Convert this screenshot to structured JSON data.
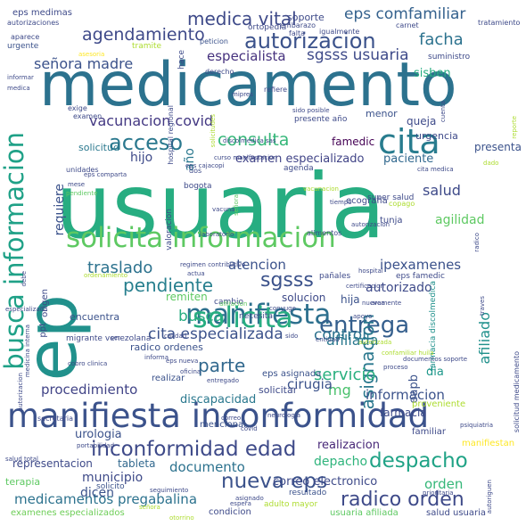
{
  "word_cloud": {
    "words": [
      {
        "text": "usuaria",
        "color": "#27ad81"
      },
      {
        "text": "medicamento",
        "color": "#2c728e"
      },
      {
        "text": "ep",
        "color": "#21918c"
      },
      {
        "text": "manifiesta inconformidad",
        "color": "#3b528b"
      },
      {
        "text": "solicita informacion",
        "color": "#5ec962"
      },
      {
        "text": "busca informacion",
        "color": "#1fa187"
      },
      {
        "text": "cita",
        "color": "#287c8e"
      },
      {
        "text": "manifiesta",
        "color": "#2d708e"
      },
      {
        "text": "solicita",
        "color": "#27ad81"
      },
      {
        "text": "despacho",
        "color": "#20a386"
      },
      {
        "text": "inconformidad edad",
        "color": "#3e4a89"
      },
      {
        "text": "nueva eps",
        "color": "#3b528b"
      },
      {
        "text": "autorizacion",
        "color": "#3b528b"
      },
      {
        "text": "acceso",
        "color": "#2a788e"
      },
      {
        "text": "consulta",
        "color": "#35b779"
      },
      {
        "text": "medica vital",
        "color": "#3e4a89"
      },
      {
        "text": "entrega",
        "color": "#355f8d"
      },
      {
        "text": "radico orden",
        "color": "#3e4a89"
      },
      {
        "text": "pendiente",
        "color": "#277f8e"
      },
      {
        "text": "sgsss",
        "color": "#3b528b"
      },
      {
        "text": "asignacion",
        "color": "#2a788e"
      },
      {
        "text": "servicio",
        "color": "#2ab07f"
      },
      {
        "text": "parte",
        "color": "#31688e"
      },
      {
        "text": "eps comfamiliar",
        "color": "#34618d"
      },
      {
        "text": "agendamiento",
        "color": "#3e4989"
      },
      {
        "text": "facha",
        "color": "#2c728e"
      },
      {
        "text": "sgsss usuaria",
        "color": "#3e4a89"
      },
      {
        "text": "especialista",
        "color": "#46327e"
      },
      {
        "text": "señora madre",
        "color": "#3b528b"
      },
      {
        "text": "vacunacion covid",
        "color": "#443983"
      },
      {
        "text": "solicitud",
        "color": "#2a788e"
      },
      {
        "text": "año",
        "color": "#2a788e"
      },
      {
        "text": "requiere",
        "color": "#3b528b"
      },
      {
        "text": "hijo",
        "color": "#3e4a89"
      },
      {
        "text": "examen especializado",
        "color": "#414487"
      },
      {
        "text": "paciente",
        "color": "#31688e"
      },
      {
        "text": "famedic",
        "color": "#440154"
      },
      {
        "text": "salud",
        "color": "#3e4a89"
      },
      {
        "text": "agilidad",
        "color": "#5ec962"
      },
      {
        "text": "traslado",
        "color": "#2c728e"
      },
      {
        "text": "atencion",
        "color": "#3b528b"
      },
      {
        "text": "ipexamenes",
        "color": "#3b528b"
      },
      {
        "text": "control",
        "color": "#2c728e"
      },
      {
        "text": "autorizado",
        "color": "#3e4a89"
      },
      {
        "text": "solucion",
        "color": "#3e4a89"
      },
      {
        "text": "hija",
        "color": "#3b528b"
      },
      {
        "text": "afiliada",
        "color": "#2a788e"
      },
      {
        "text": "cita especializada",
        "color": "#3b528b"
      },
      {
        "text": "busca",
        "color": "#27ad81"
      },
      {
        "text": "remiten",
        "color": "#5ec962"
      },
      {
        "text": "procedimiento",
        "color": "#414487"
      },
      {
        "text": "mg",
        "color": "#4ac16d"
      },
      {
        "text": "informacion",
        "color": "#3b528b"
      },
      {
        "text": "dia",
        "color": "#1f988b"
      },
      {
        "text": "cirugia",
        "color": "#3b528b"
      },
      {
        "text": "eapb",
        "color": "#3b528b"
      },
      {
        "text": "afiliado",
        "color": "#21918c"
      },
      {
        "text": "farmacia",
        "color": "#3e4a89"
      },
      {
        "text": "discapacidad",
        "color": "#2a788e"
      },
      {
        "text": "documento",
        "color": "#2c728e"
      },
      {
        "text": "municipio",
        "color": "#3e4a89"
      },
      {
        "text": "depacho",
        "color": "#2fb47c"
      },
      {
        "text": "realizacion",
        "color": "#482878"
      },
      {
        "text": "medicamentos pregabalina",
        "color": "#2c728e"
      },
      {
        "text": "dicen",
        "color": "#3b528b"
      },
      {
        "text": "correo electronico",
        "color": "#3e4a89"
      },
      {
        "text": "orden",
        "color": "#35b779"
      },
      {
        "text": "urologia",
        "color": "#3b528b"
      },
      {
        "text": "representacion",
        "color": "#3e4a89"
      },
      {
        "text": "tableta",
        "color": "#31688e"
      },
      {
        "text": "terapia",
        "color": "#5ec962"
      },
      {
        "text": "examenes especializados",
        "color": "#6ece58"
      },
      {
        "text": "condicion",
        "color": "#3e4a89"
      },
      {
        "text": "usuaria afiliada",
        "color": "#5ec962"
      },
      {
        "text": "salud usuaria",
        "color": "#3e4a89"
      },
      {
        "text": "adulto mayor",
        "color": "#addc30"
      },
      {
        "text": "resultado",
        "color": "#3b528b"
      },
      {
        "text": "solicito",
        "color": "#3b528b"
      },
      {
        "text": "mencional",
        "color": "#3b528b"
      },
      {
        "text": "secretaria",
        "color": "#3e4a89"
      },
      {
        "text": "realizar",
        "color": "#3b528b"
      },
      {
        "text": "solicitar",
        "color": "#3e4a89"
      },
      {
        "text": "eps asignada",
        "color": "#3b528b"
      },
      {
        "text": "proveniente",
        "color": "#addc30"
      },
      {
        "text": "familiar",
        "color": "#3e4a89"
      },
      {
        "text": "manifiestan",
        "color": "#fde725"
      },
      {
        "text": "encuentra",
        "color": "#3b528b"
      },
      {
        "text": "radico ordenes",
        "color": "#3b528b"
      },
      {
        "text": "migrante venezolana",
        "color": "#3e4a89"
      },
      {
        "text": "menor",
        "color": "#3b528b"
      },
      {
        "text": "queja",
        "color": "#3e4a89"
      },
      {
        "text": "urgencia",
        "color": "#3e4a89"
      },
      {
        "text": "presenta",
        "color": "#3b528b"
      },
      {
        "text": "soporte",
        "color": "#3e4a89"
      },
      {
        "text": "sisben",
        "color": "#27ad81"
      },
      {
        "text": "suministro",
        "color": "#3e4a89"
      },
      {
        "text": "ortopedia",
        "color": "#3e4a89"
      },
      {
        "text": "eps medimas",
        "color": "#3e4a89"
      },
      {
        "text": "autorizaciones",
        "color": "#3e4a89"
      },
      {
        "text": "urgente",
        "color": "#3b528b"
      },
      {
        "text": "tramite",
        "color": "#addc30"
      },
      {
        "text": "hace",
        "color": "#3e4a89"
      },
      {
        "text": "peticion",
        "color": "#3b528b"
      },
      {
        "text": "derecho",
        "color": "#3e4a89"
      },
      {
        "text": "refiere",
        "color": "#3e4a89"
      },
      {
        "text": "bogota",
        "color": "#3e4a89"
      },
      {
        "text": "agenda",
        "color": "#3e4a89"
      },
      {
        "text": "ecografia",
        "color": "#3e4a89"
      },
      {
        "text": "valoracion",
        "color": "#3e4a89"
      },
      {
        "text": "alimentos",
        "color": "#3e4a89"
      },
      {
        "text": "pañales",
        "color": "#3e4a89"
      },
      {
        "text": "eps famedic",
        "color": "#3e4a89"
      },
      {
        "text": "necesita",
        "color": "#3e4a89"
      },
      {
        "text": "cambio",
        "color": "#3e4a89"
      },
      {
        "text": "tunja",
        "color": "#3e4a89"
      },
      {
        "text": "farmacia discolmedica",
        "color": "#21918c"
      },
      {
        "text": "super salud",
        "color": "#3e4a89"
      },
      {
        "text": "copago",
        "color": "#addc30"
      },
      {
        "text": "unidades",
        "color": "#3e4a89"
      },
      {
        "text": "examen",
        "color": "#3e4a89"
      },
      {
        "text": "exige",
        "color": "#3e4a89"
      },
      {
        "text": "presente año",
        "color": "#3e4a89"
      },
      {
        "text": "dos",
        "color": "#3e4a89"
      },
      {
        "text": "carnet",
        "color": "#3e4a89"
      },
      {
        "text": "embarazo",
        "color": "#3e4a89"
      },
      {
        "text": "igualmente",
        "color": "#3e4a89"
      },
      {
        "text": "tratamiento",
        "color": "#3e4a89"
      },
      {
        "text": "aparece",
        "color": "#3e4a89"
      },
      {
        "text": "falta",
        "color": "#3e4a89"
      },
      {
        "text": "asesoria",
        "color": "#fde725"
      },
      {
        "text": "hospital regional",
        "color": "#3e4a89"
      },
      {
        "text": "mipres",
        "color": "#3e4a89"
      },
      {
        "text": "sido posible",
        "color": "#3e4a89"
      },
      {
        "text": "discolmedica sas",
        "color": "#3e4a89"
      },
      {
        "text": "curso manifestacion",
        "color": "#3e4a89"
      },
      {
        "text": "eps cajacopi",
        "color": "#3e4a89"
      },
      {
        "text": "eps comparta",
        "color": "#3e4a89"
      },
      {
        "text": "vacunacion",
        "color": "#addc30"
      },
      {
        "text": "cita medica",
        "color": "#3e4a89"
      },
      {
        "text": "dado",
        "color": "#addc30"
      },
      {
        "text": "laboratorio",
        "color": "#3e4a89"
      },
      {
        "text": "autorizacion",
        "color": "#3e4a89"
      },
      {
        "text": "tiempo",
        "color": "#3e4a89"
      },
      {
        "text": "radico",
        "color": "#3e4a89"
      },
      {
        "text": "ordenamiento",
        "color": "#addc30"
      },
      {
        "text": "regimen contributivo",
        "color": "#3e4a89"
      },
      {
        "text": "actua",
        "color": "#3e4a89"
      },
      {
        "text": "nuevamente",
        "color": "#3e4a89"
      },
      {
        "text": "certificacion",
        "color": "#3e4a89"
      },
      {
        "text": "especializada",
        "color": "#3e4a89"
      },
      {
        "text": "conyuge",
        "color": "#3e4a89"
      },
      {
        "text": "apoyo",
        "color": "#3e4a89"
      },
      {
        "text": "ser",
        "color": "#3e4a89"
      },
      {
        "text": "calidad",
        "color": "#3e4a89"
      },
      {
        "text": "entidad",
        "color": "#3e4a89"
      },
      {
        "text": "sido",
        "color": "#3e4a89"
      },
      {
        "text": "autorizada",
        "color": "#addc30"
      },
      {
        "text": "informa",
        "color": "#3e4a89"
      },
      {
        "text": "eps nueva",
        "color": "#3e4a89"
      },
      {
        "text": "clinica",
        "color": "#3e4a89"
      },
      {
        "text": "cobro",
        "color": "#3e4a89"
      },
      {
        "text": "proceso",
        "color": "#3e4a89"
      },
      {
        "text": "oficina",
        "color": "#3e4a89"
      },
      {
        "text": "documentos soporte",
        "color": "#3e4a89"
      },
      {
        "text": "confamiliar huila",
        "color": "#addc30"
      },
      {
        "text": "entregado",
        "color": "#3e4a89"
      },
      {
        "text": "psiquiatria",
        "color": "#3e4a89"
      },
      {
        "text": "portabilidad",
        "color": "#3e4a89"
      },
      {
        "text": "salud total",
        "color": "#3e4a89"
      },
      {
        "text": "asignado",
        "color": "#3e4a89"
      },
      {
        "text": "prioritaria",
        "color": "#3e4a89"
      },
      {
        "text": "seguimiento",
        "color": "#3e4a89"
      },
      {
        "text": "espera",
        "color": "#3e4a89"
      },
      {
        "text": "otorrino",
        "color": "#addc30"
      },
      {
        "text": "correo",
        "color": "#3e4a89"
      },
      {
        "text": "covid",
        "color": "#3e4a89"
      },
      {
        "text": "neurologia",
        "color": "#3e4a89"
      },
      {
        "text": "autoriguen",
        "color": "#3e4a89"
      },
      {
        "text": "solicitud medicamento",
        "color": "#3e4a89"
      },
      {
        "text": "autorizacion",
        "color": "#3e4a89"
      },
      {
        "text": "informar",
        "color": "#3e4a89"
      },
      {
        "text": "medica",
        "color": "#3e4a89"
      },
      {
        "text": "cuenta",
        "color": "#3e4a89"
      },
      {
        "text": "hospital",
        "color": "#3e4a89"
      },
      {
        "text": "ppt",
        "color": "#3e4a89"
      },
      {
        "text": "origen",
        "color": "#3e4a89"
      },
      {
        "text": "afiliacion",
        "color": "#5ec962"
      },
      {
        "text": "medicina interna",
        "color": "#3e4a89"
      },
      {
        "text": "debe",
        "color": "#3e4a89"
      },
      {
        "text": "traves",
        "color": "#3e4a89"
      },
      {
        "text": "area",
        "color": "#3e4a89"
      },
      {
        "text": "señora",
        "color": "#addc30"
      },
      {
        "text": "señora",
        "color": "#5ec962"
      },
      {
        "text": "reporte",
        "color": "#addc30"
      },
      {
        "text": "vacuna",
        "color": "#3e4a89"
      },
      {
        "text": "mese",
        "color": "#3e4a89"
      },
      {
        "text": "pendiente",
        "color": "#5ec962"
      },
      {
        "text": "solicitudes",
        "color": "#addc30"
      }
    ]
  }
}
